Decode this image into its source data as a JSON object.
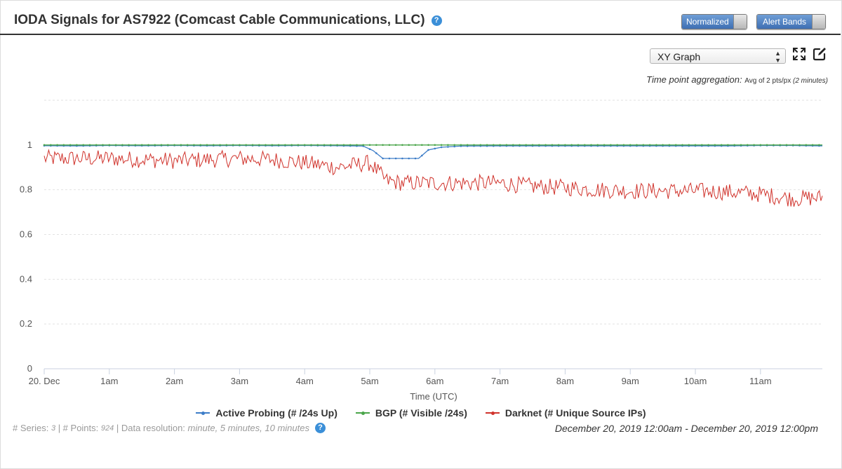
{
  "header": {
    "title": "IODA Signals for AS7922 (Comcast Cable Communications, LLC)",
    "help_glyph": "?",
    "normalized_label": "Normalized",
    "alert_bands_label": "Alert Bands"
  },
  "controls": {
    "view_select": "XY Graph",
    "agg_label": "Time point aggregation:",
    "agg_value_prefix": "Avg of 2 pts/px",
    "agg_value_suffix": "(2 minutes)"
  },
  "footer": {
    "series_label": "# Series:",
    "series_value": "3",
    "points_label": "| # Points:",
    "points_value": "924",
    "resolution_label": "| Data resolution:",
    "resolution_value": "minute, 5 minutes, 10 minutes",
    "help_glyph": "?",
    "date_range": "December 20, 2019 12:00am - December 20, 2019 12:00pm"
  },
  "colors": {
    "active_probing": "#3d7dc8",
    "bgp": "#4aa54a",
    "darknet": "#d0332c",
    "grid": "#e2e2e2"
  },
  "chart_data": {
    "type": "line",
    "title": "",
    "xlabel": "Time (UTC)",
    "ylabel": "",
    "ylim": [
      0,
      1.2
    ],
    "yticks": [
      0,
      0.2,
      0.4,
      0.6,
      0.8,
      1
    ],
    "ytick_labels": [
      "0",
      "0.2",
      "0.4",
      "0.6",
      "0.8",
      "1"
    ],
    "xlim": [
      0,
      11.95
    ],
    "xticks": [
      0,
      1,
      2,
      3,
      4,
      5,
      6,
      7,
      8,
      9,
      10,
      11
    ],
    "xtick_labels": [
      "20. Dec",
      "1am",
      "2am",
      "3am",
      "4am",
      "5am",
      "6am",
      "7am",
      "8am",
      "9am",
      "10am",
      "11am"
    ],
    "legend_position": "bottom-center",
    "series": [
      {
        "key": "active_probing",
        "name": "Active Probing (# /24s Up)",
        "x": [
          0,
          0.5,
          1,
          1.5,
          2,
          2.5,
          3,
          3.5,
          4,
          4.5,
          4.9,
          5.05,
          5.2,
          5.4,
          5.6,
          5.75,
          5.9,
          6.1,
          6.4,
          7,
          8,
          9,
          10,
          10.5,
          11,
          11.5,
          11.95
        ],
        "y": [
          0.997,
          0.996,
          0.998,
          0.997,
          0.998,
          0.997,
          0.998,
          0.997,
          0.998,
          0.997,
          0.995,
          0.975,
          0.94,
          0.94,
          0.94,
          0.94,
          0.978,
          0.99,
          0.995,
          0.996,
          0.996,
          0.996,
          0.996,
          0.996,
          0.998,
          0.998,
          0.996
        ]
      },
      {
        "key": "bgp",
        "name": "BGP (# Visible /24s)",
        "x": [
          0,
          1,
          2,
          3,
          4,
          5,
          6,
          7,
          8,
          9,
          10,
          11,
          11.95
        ],
        "y": [
          1.0,
          1.0,
          1.0,
          1.0,
          1.0,
          1.0,
          1.0,
          1.0,
          1.0,
          1.0,
          1.0,
          1.0,
          1.0
        ]
      },
      {
        "key": "darknet",
        "name": "Darknet (# Unique Source IPs)",
        "x": [
          0,
          0.5,
          1,
          1.5,
          2,
          2.5,
          3,
          3.5,
          4,
          4.5,
          5,
          5.25,
          5.5,
          6,
          6.5,
          7,
          7.5,
          8,
          8.5,
          9,
          9.5,
          10,
          10.5,
          11,
          11.5,
          11.95
        ],
        "y": [
          0.94,
          0.94,
          0.94,
          0.935,
          0.93,
          0.935,
          0.94,
          0.935,
          0.92,
          0.9,
          0.92,
          0.84,
          0.83,
          0.83,
          0.83,
          0.83,
          0.815,
          0.81,
          0.8,
          0.795,
          0.795,
          0.795,
          0.79,
          0.78,
          0.76,
          0.765
        ]
      }
    ]
  }
}
